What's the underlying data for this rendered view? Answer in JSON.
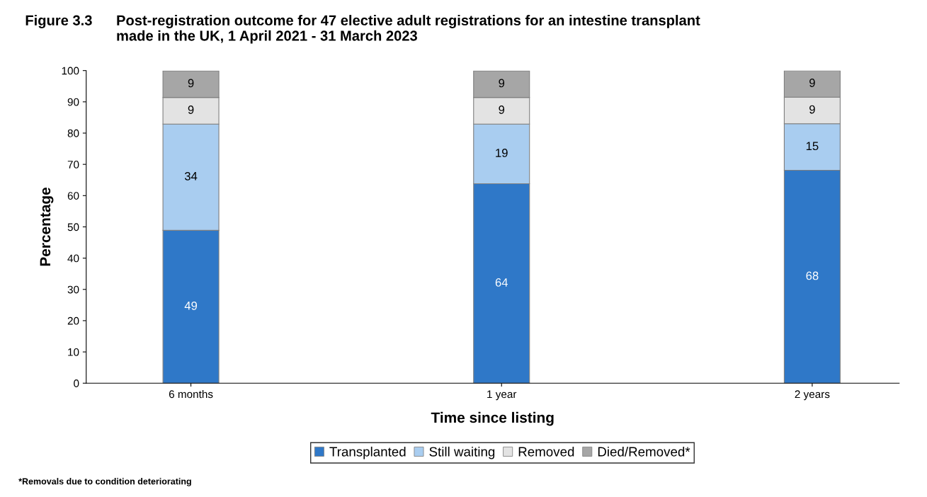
{
  "chart_data": {
    "type": "bar",
    "stacked": true,
    "title": "Figure 3.3      Post-registration outcome for 47 elective adult registrations for an intestine transplant\n                       made in the UK, 1 April 2021 - 31 March 2023",
    "xlabel": "Time since listing",
    "ylabel": "Percentage",
    "categories": [
      "6 months",
      "1 year",
      "2 years"
    ],
    "series": [
      {
        "name": "Transplanted",
        "color": "#2f78c8",
        "values": [
          48.9,
          63.8,
          68.1
        ],
        "value_labels": [
          "49",
          "64",
          "68"
        ]
      },
      {
        "name": "Still waiting",
        "color": "#a9cdf0",
        "values": [
          34.0,
          19.1,
          14.9
        ],
        "value_labels": [
          "34",
          "19",
          "15"
        ]
      },
      {
        "name": "Removed",
        "color": "#e3e3e3",
        "values": [
          8.5,
          8.5,
          8.5
        ],
        "value_labels": [
          "9",
          "9",
          "9"
        ]
      },
      {
        "name": "Died/Removed*",
        "color": "#a6a6a6",
        "values": [
          8.5,
          8.5,
          8.5
        ],
        "value_labels": [
          "9",
          "9",
          "9"
        ]
      }
    ],
    "ylim": [
      0,
      100
    ],
    "yticks": [
      0,
      10,
      20,
      30,
      40,
      50,
      60,
      70,
      80,
      90,
      100
    ],
    "grid": false,
    "legend": "bottom",
    "annotations": [
      "*Removals due to condition deteriorating"
    ]
  }
}
